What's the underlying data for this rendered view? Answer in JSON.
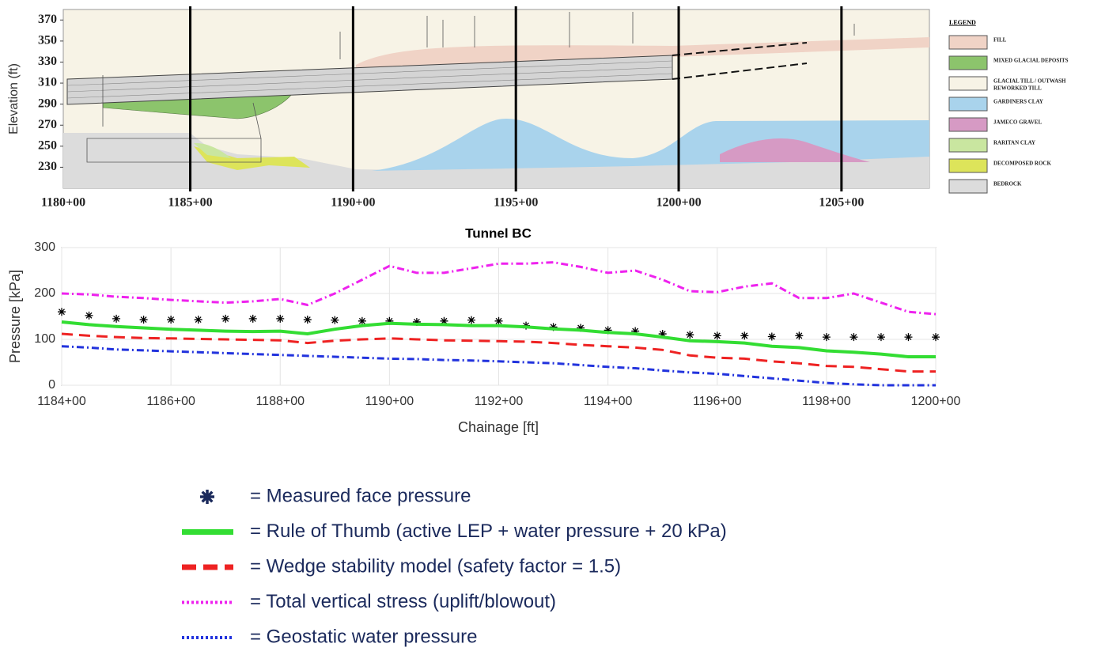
{
  "chart_data": [
    {
      "type": "profile",
      "ylabel": "Elevation (ft)",
      "xlim": [
        118110,
        120770
      ],
      "ylim": [
        210,
        380
      ],
      "yticks": [
        230,
        250,
        270,
        290,
        310,
        330,
        350,
        370
      ],
      "xticks": [
        {
          "value": 118000,
          "label": "1180+00"
        },
        {
          "value": 118500,
          "label": "1185+00"
        },
        {
          "value": 119000,
          "label": "1190+00"
        },
        {
          "value": 119500,
          "label": "1195+00"
        },
        {
          "value": 120000,
          "label": "1200+00"
        },
        {
          "value": 120500,
          "label": "1205+00"
        }
      ],
      "grid": true,
      "legend": {
        "title": "LEGEND",
        "layers": [
          {
            "name": [
              "FILL"
            ],
            "color": "#f0d3c6"
          },
          {
            "name": [
              "MIXED GLACIAL DEPOSITS"
            ],
            "color": "#8cc46c"
          },
          {
            "name": [
              "GLACIAL TILL / OUTWASH",
              "REWORKED TILL"
            ],
            "color": "#f7f3e6"
          },
          {
            "name": [
              "GARDINERS CLAY"
            ],
            "color": "#a9d3ec"
          },
          {
            "name": [
              "JAMECO GRAVEL"
            ],
            "color": "#d69ac4"
          },
          {
            "name": [
              "RARITAN CLAY"
            ],
            "color": "#c9e6a0"
          },
          {
            "name": [
              "DECOMPOSED ROCK"
            ],
            "color": "#dde45a"
          },
          {
            "name": [
              "BEDROCK"
            ],
            "color": "#dcdcdc"
          }
        ]
      }
    },
    {
      "type": "line",
      "title": "Tunnel BC",
      "xlabel": "Chainage [ft]",
      "ylabel": "Pressure [kPa]",
      "x": [
        118400,
        118450,
        118500,
        118550,
        118600,
        118650,
        118700,
        118750,
        118800,
        118850,
        118900,
        118950,
        119000,
        119050,
        119100,
        119150,
        119200,
        119250,
        119300,
        119350,
        119400,
        119450,
        119500,
        119550,
        119600,
        119650,
        119700,
        119750,
        119800,
        119850,
        119900,
        119950,
        120000
      ],
      "xlim": [
        118400,
        120000
      ],
      "ylim": [
        0,
        300
      ],
      "xticks": [
        {
          "value": 118400,
          "label": "1184+00"
        },
        {
          "value": 118600,
          "label": "1186+00"
        },
        {
          "value": 118800,
          "label": "1188+00"
        },
        {
          "value": 119000,
          "label": "1190+00"
        },
        {
          "value": 119200,
          "label": "1192+00"
        },
        {
          "value": 119400,
          "label": "1194+00"
        },
        {
          "value": 119600,
          "label": "1196+00"
        },
        {
          "value": 119800,
          "label": "1198+00"
        },
        {
          "value": 120000,
          "label": "1200+00"
        }
      ],
      "yticks": [
        0,
        100,
        200,
        300
      ],
      "grid": true,
      "legend_position": "below",
      "series": [
        {
          "name": "= Measured face pressure",
          "color": "#000000",
          "legend_color": "#1b2a5c",
          "marker": "asterisk",
          "values": [
            160,
            152,
            145,
            143,
            143,
            143,
            145,
            145,
            145,
            143,
            142,
            140,
            140,
            138,
            140,
            142,
            140,
            130,
            127,
            125,
            120,
            118,
            112,
            110,
            108,
            108,
            106,
            108,
            105,
            105,
            105,
            105,
            105
          ]
        },
        {
          "name": "= Rule of Thumb (active LEP + water pressure + 20 kPa)",
          "color": "#33dd33",
          "linestyle": "solid",
          "values": [
            138,
            132,
            128,
            125,
            122,
            120,
            118,
            117,
            118,
            112,
            122,
            130,
            135,
            133,
            132,
            130,
            130,
            127,
            123,
            120,
            115,
            112,
            105,
            97,
            95,
            92,
            85,
            82,
            75,
            72,
            68,
            62,
            62
          ]
        },
        {
          "name": "= Wedge stability model (safety factor = 1.5)",
          "color": "#ee2222",
          "linestyle": "dashed",
          "values": [
            112,
            108,
            105,
            103,
            102,
            101,
            100,
            99,
            98,
            92,
            97,
            100,
            102,
            100,
            98,
            97,
            96,
            95,
            92,
            88,
            85,
            82,
            77,
            65,
            60,
            58,
            52,
            48,
            42,
            40,
            35,
            30,
            30
          ]
        },
        {
          "name": "= Total vertical stress (uplift/blowout)",
          "color": "#ee22ee",
          "linestyle": "dashdot",
          "legend_linestyle": "dotted",
          "values": [
            200,
            198,
            193,
            190,
            186,
            183,
            180,
            183,
            188,
            175,
            200,
            230,
            260,
            245,
            245,
            255,
            265,
            265,
            268,
            258,
            245,
            250,
            230,
            205,
            203,
            215,
            222,
            190,
            190,
            200,
            180,
            160,
            155
          ]
        },
        {
          "name": "= Geostatic water pressure",
          "color": "#2233dd",
          "linestyle": "dashdot",
          "legend_linestyle": "dotted",
          "values": [
            85,
            82,
            78,
            76,
            74,
            72,
            70,
            68,
            66,
            64,
            62,
            60,
            58,
            57,
            55,
            54,
            52,
            50,
            48,
            44,
            40,
            37,
            32,
            28,
            25,
            20,
            15,
            10,
            5,
            2,
            0,
            0,
            0
          ]
        }
      ]
    }
  ]
}
